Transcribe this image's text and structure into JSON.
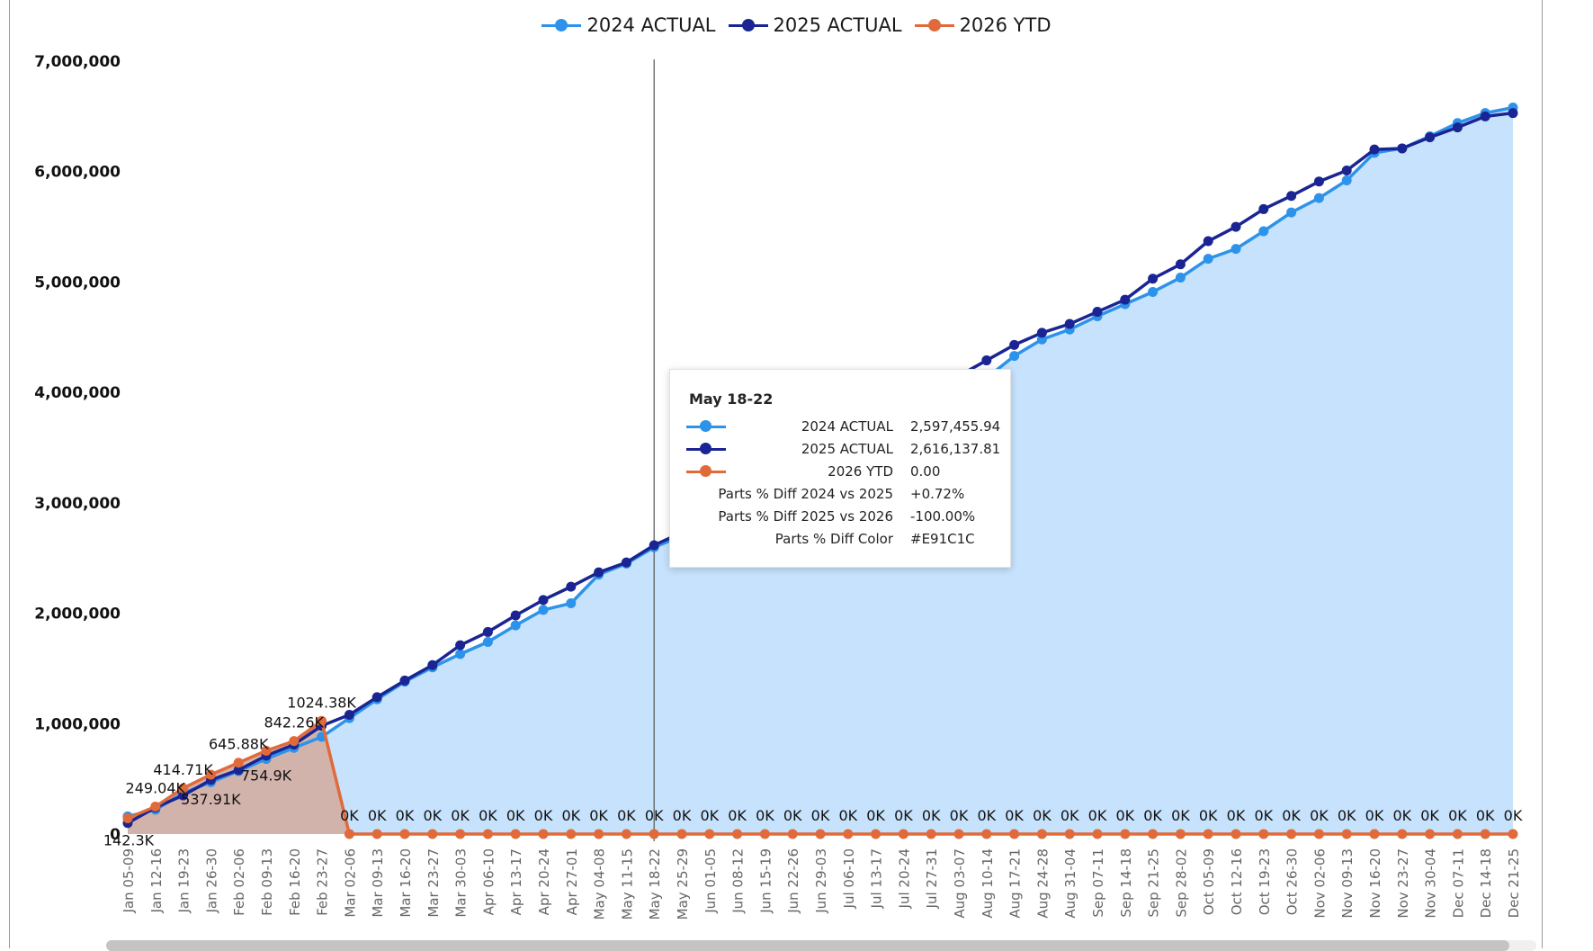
{
  "colors": {
    "s2024": "#2d93ea",
    "s2025": "#1a2593",
    "s2026": "#e06a3a",
    "area2024": "#c6e2fc",
    "area2026": "#d2b3ac",
    "axis_text": "#111111",
    "tick_text": "#666666",
    "crosshair": "#555555"
  },
  "chart_data": {
    "type": "line",
    "legend_position": "top-center",
    "grid": false,
    "ylim": [
      0,
      7000000
    ],
    "y_ticks": [
      0,
      1000000,
      2000000,
      3000000,
      4000000,
      5000000,
      6000000,
      7000000
    ],
    "y_tick_labels": [
      "0",
      "1,000,000",
      "2,000,000",
      "3,000,000",
      "4,000,000",
      "5,000,000",
      "6,000,000",
      "7,000,000"
    ],
    "categories": [
      "Jan 05-09",
      "Jan 12-16",
      "Jan 19-23",
      "Jan 26-30",
      "Feb 02-06",
      "Feb 09-13",
      "Feb 16-20",
      "Feb 23-27",
      "Mar 02-06",
      "Mar 09-13",
      "Mar 16-20",
      "Mar 23-27",
      "Mar 30-03",
      "Apr 06-10",
      "Apr 13-17",
      "Apr 20-24",
      "Apr 27-01",
      "May 04-08",
      "May 11-15",
      "May 18-22",
      "May 25-29",
      "Jun 01-05",
      "Jun 08-12",
      "Jun 15-19",
      "Jun 22-26",
      "Jun 29-03",
      "Jul 06-10",
      "Jul 13-17",
      "Jul 20-24",
      "Jul 27-31",
      "Aug 03-07",
      "Aug 10-14",
      "Aug 17-21",
      "Aug 24-28",
      "Aug 31-04",
      "Sep 07-11",
      "Sep 14-18",
      "Sep 21-25",
      "Sep 28-02",
      "Oct 05-09",
      "Oct 12-16",
      "Oct 19-23",
      "Oct 26-30",
      "Nov 02-06",
      "Nov 09-13",
      "Nov 16-20",
      "Nov 23-27",
      "Nov 30-04",
      "Dec 07-11",
      "Dec 14-18",
      "Dec 21-25"
    ],
    "series": [
      {
        "name": "2024 ACTUAL",
        "values": [
          160000,
          220000,
          370000,
          470000,
          570000,
          680000,
          780000,
          880000,
          1050000,
          1220000,
          1380000,
          1510000,
          1630000,
          1740000,
          1890000,
          2030000,
          2090000,
          2350000,
          2450000,
          2597455.94,
          2700000,
          2800000,
          2900000,
          3000000,
          3100000,
          3200000,
          3300000,
          3400000,
          3500000,
          3600000,
          3980000,
          4130000,
          4330000,
          4480000,
          4570000,
          4690000,
          4800000,
          4910000,
          5040000,
          5210000,
          5300000,
          5460000,
          5630000,
          5760000,
          5920000,
          6170000,
          6210000,
          6320000,
          6440000,
          6530000,
          6580000
        ]
      },
      {
        "name": "2025 ACTUAL",
        "values": [
          100000,
          240000,
          350000,
          490000,
          580000,
          710000,
          810000,
          980000,
          1080000,
          1240000,
          1390000,
          1530000,
          1710000,
          1830000,
          1980000,
          2120000,
          2240000,
          2370000,
          2460000,
          2616137.81,
          2730000,
          2840000,
          2950000,
          3050000,
          3150000,
          3250000,
          3350000,
          3450000,
          3550000,
          3650000,
          4150000,
          4290000,
          4430000,
          4540000,
          4620000,
          4730000,
          4840000,
          5030000,
          5160000,
          5370000,
          5500000,
          5660000,
          5780000,
          5910000,
          6010000,
          6200000,
          6210000,
          6310000,
          6400000,
          6500000,
          6530000
        ]
      },
      {
        "name": "2026 YTD",
        "values": [
          142300,
          249040,
          414710,
          537910,
          645880,
          754900,
          842260,
          1024380,
          0,
          0,
          0,
          0,
          0,
          0,
          0,
          0,
          0,
          0,
          0,
          0,
          0,
          0,
          0,
          0,
          0,
          0,
          0,
          0,
          0,
          0,
          0,
          0,
          0,
          0,
          0,
          0,
          0,
          0,
          0,
          0,
          0,
          0,
          0,
          0,
          0,
          0,
          0,
          0,
          0,
          0,
          0
        ],
        "labels": [
          "142.3K",
          "249.04K",
          "414.71K",
          "537.91K",
          "645.88K",
          "754.9K",
          "842.26K",
          "1024.38K",
          "0K",
          "0K",
          "0K",
          "0K",
          "0K",
          "0K",
          "0K",
          "0K",
          "0K",
          "0K",
          "0K",
          "0K",
          "0K",
          "0K",
          "0K",
          "0K",
          "0K",
          "0K",
          "0K",
          "0K",
          "0K",
          "0K",
          "0K",
          "0K",
          "0K",
          "0K",
          "0K",
          "0K",
          "0K",
          "0K",
          "0K",
          "0K",
          "0K",
          "0K",
          "0K",
          "0K",
          "0K",
          "0K",
          "0K",
          "0K",
          "0K",
          "0K",
          "0K"
        ]
      }
    ]
  },
  "tooltip": {
    "title": "May 18-22",
    "rows": [
      {
        "label": "2024 ACTUAL",
        "value": "2,597,455.94",
        "swatch": "s2024"
      },
      {
        "label": "2025 ACTUAL",
        "value": "2,616,137.81",
        "swatch": "s2025"
      },
      {
        "label": "2026 YTD",
        "value": "0.00",
        "swatch": "s2026"
      },
      {
        "label": "Parts % Diff 2024 vs 2025",
        "value": "+0.72%"
      },
      {
        "label": "Parts % Diff 2025 vs 2026",
        "value": "-100.00%"
      },
      {
        "label": "Parts % Diff Color",
        "value": "#E91C1C"
      }
    ]
  },
  "hover_category_index": 19
}
